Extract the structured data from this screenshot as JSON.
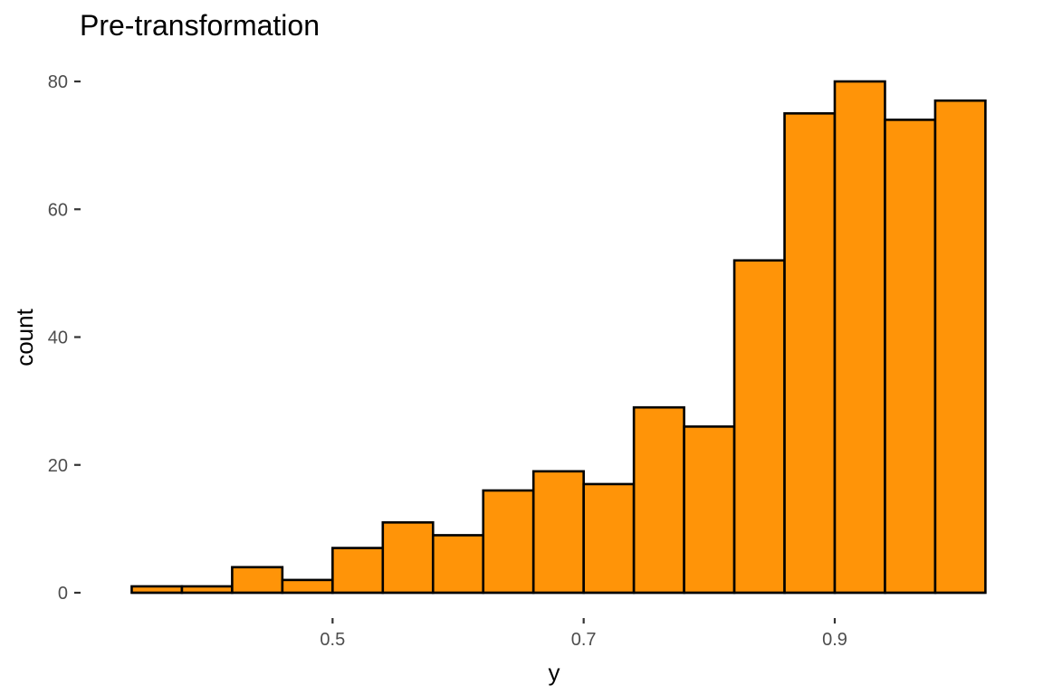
{
  "chart_data": {
    "type": "bar",
    "subtype": "histogram",
    "title": "Pre-transformation",
    "xlabel": "y",
    "ylabel": "count",
    "bin_width": 0.04,
    "bins": [
      {
        "x0": 0.34,
        "x1": 0.38,
        "count": 1
      },
      {
        "x0": 0.38,
        "x1": 0.42,
        "count": 1
      },
      {
        "x0": 0.42,
        "x1": 0.46,
        "count": 4
      },
      {
        "x0": 0.46,
        "x1": 0.5,
        "count": 2
      },
      {
        "x0": 0.5,
        "x1": 0.54,
        "count": 7
      },
      {
        "x0": 0.54,
        "x1": 0.58,
        "count": 11
      },
      {
        "x0": 0.58,
        "x1": 0.62,
        "count": 9
      },
      {
        "x0": 0.62,
        "x1": 0.66,
        "count": 16
      },
      {
        "x0": 0.66,
        "x1": 0.7,
        "count": 19
      },
      {
        "x0": 0.7,
        "x1": 0.74,
        "count": 17
      },
      {
        "x0": 0.74,
        "x1": 0.78,
        "count": 29
      },
      {
        "x0": 0.78,
        "x1": 0.82,
        "count": 26
      },
      {
        "x0": 0.82,
        "x1": 0.86,
        "count": 52
      },
      {
        "x0": 0.86,
        "x1": 0.9,
        "count": 75
      },
      {
        "x0": 0.9,
        "x1": 0.94,
        "count": 80
      },
      {
        "x0": 0.94,
        "x1": 0.98,
        "count": 74
      },
      {
        "x0": 0.98,
        "x1": 1.02,
        "count": 77
      }
    ],
    "xlim": [
      0.3,
      1.05
    ],
    "ylim": [
      0,
      80
    ],
    "x_ticks": [
      {
        "value": 0.5,
        "label": "0.5"
      },
      {
        "value": 0.7,
        "label": "0.7"
      },
      {
        "value": 0.9,
        "label": "0.9"
      }
    ],
    "y_ticks": [
      {
        "value": 0,
        "label": "0"
      },
      {
        "value": 20,
        "label": "20"
      },
      {
        "value": 40,
        "label": "40"
      },
      {
        "value": 60,
        "label": "60"
      },
      {
        "value": 80,
        "label": "80"
      }
    ],
    "grid": false,
    "legend": "none",
    "colors": {
      "bar_fill": "#FF9408",
      "bar_outline": "#000000",
      "axis": "#000000",
      "tick_label": "#4D4D4D",
      "background": "#FFFFFF"
    }
  }
}
